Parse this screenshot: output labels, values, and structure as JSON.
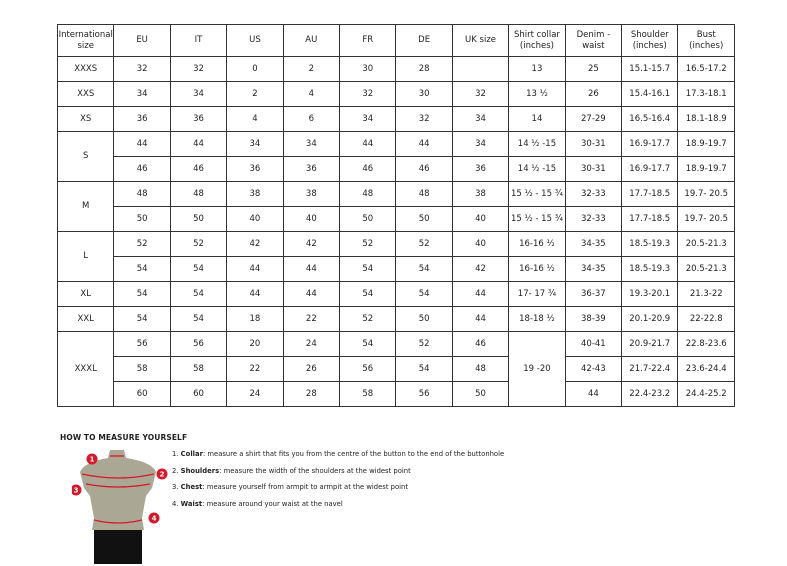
{
  "headers": [
    "International size",
    "EU",
    "IT",
    "US",
    "AU",
    "FR",
    "DE",
    "UK size",
    "Shirt collar (inches)",
    "Denim - waist",
    "Shoulder (inches)",
    "Bust (inches)"
  ],
  "groups": [
    {
      "size": "XXXS",
      "rows": [
        [
          "32",
          "32",
          "0",
          "2",
          "30",
          "28",
          "",
          "13",
          "25",
          "15.1-15.7",
          "16.5-17.2"
        ]
      ]
    },
    {
      "size": "XXS",
      "rows": [
        [
          "34",
          "34",
          "2",
          "4",
          "32",
          "30",
          "32",
          "13 ½",
          "26",
          "15.4-16.1",
          "17.3-18.1"
        ]
      ]
    },
    {
      "size": "XS",
      "rows": [
        [
          "36",
          "36",
          "4",
          "6",
          "34",
          "32",
          "34",
          "14",
          "27-29",
          "16.5-16.4",
          "18.1-18.9"
        ]
      ]
    },
    {
      "size": "S",
      "rows": [
        [
          "44",
          "44",
          "34",
          "34",
          "44",
          "44",
          "34",
          "14 ½ -15",
          "30-31",
          "16.9-17.7",
          "18.9-19.7"
        ],
        [
          "46",
          "46",
          "36",
          "36",
          "46",
          "46",
          "36",
          "14 ½ -15",
          "30-31",
          "16.9-17.7",
          "18.9-19.7"
        ]
      ]
    },
    {
      "size": "M",
      "rows": [
        [
          "48",
          "48",
          "38",
          "38",
          "48",
          "48",
          "38",
          "15 ½ - 15 ¾",
          "32-33",
          "17.7-18.5",
          "19.7- 20.5"
        ],
        [
          "50",
          "50",
          "40",
          "40",
          "50",
          "50",
          "40",
          "15 ½ - 15 ¾",
          "32-33",
          "17.7-18.5",
          "19.7- 20.5"
        ]
      ]
    },
    {
      "size": "L",
      "rows": [
        [
          "52",
          "52",
          "42",
          "42",
          "52",
          "52",
          "40",
          "16-16 ½",
          "34-35",
          "18.5-19.3",
          "20.5-21.3"
        ],
        [
          "54",
          "54",
          "44",
          "44",
          "54",
          "54",
          "42",
          "16-16 ½",
          "34-35",
          "18.5-19.3",
          "20.5-21.3"
        ]
      ]
    },
    {
      "size": "XL",
      "rows": [
        [
          "54",
          "54",
          "44",
          "44",
          "54",
          "54",
          "44",
          "17- 17 ¾",
          "36-37",
          "19.3-20.1",
          "21.3-22"
        ]
      ]
    },
    {
      "size": "XXL",
      "rows": [
        [
          "54",
          "54",
          "18",
          "22",
          "52",
          "50",
          "44",
          "18-18 ½",
          "38-39",
          "20.1-20.9",
          "22-22.8"
        ]
      ]
    },
    {
      "size": "XXXL",
      "collar": "19 -20",
      "rows": [
        [
          "56",
          "56",
          "20",
          "24",
          "54",
          "52",
          "46",
          "40-41",
          "20.9-21.7",
          "22.8-23.6"
        ],
        [
          "58",
          "58",
          "22",
          "26",
          "56",
          "54",
          "48",
          "42-43",
          "21.7-22.4",
          "23.6-24.4"
        ],
        [
          "60",
          "60",
          "24",
          "28",
          "58",
          "56",
          "50",
          "44",
          "22.4-23.2",
          "24.4-25.2"
        ]
      ]
    }
  ],
  "guide": {
    "title": "HOW TO MEASURE YOURSELF",
    "items": [
      {
        "num": "1.",
        "term": "Collar",
        "text": ": measure a shirt that fits you from the centre of the button to the end of the buttonhole"
      },
      {
        "num": "2.",
        "term": "Shoulders",
        "text": ": measure the width of the shoulders at the widest point"
      },
      {
        "num": "3.",
        "term": "Chest",
        "text": ": measure yourself from armpit to armpit at the widest point"
      },
      {
        "num": "4.",
        "term": "Waist",
        "text": ": measure around your waist at the navel"
      }
    ],
    "markers": [
      "1",
      "2",
      "3",
      "4"
    ],
    "colors": {
      "marker": "#d7182a",
      "body": "#aaa894",
      "pants": "#111111"
    }
  }
}
